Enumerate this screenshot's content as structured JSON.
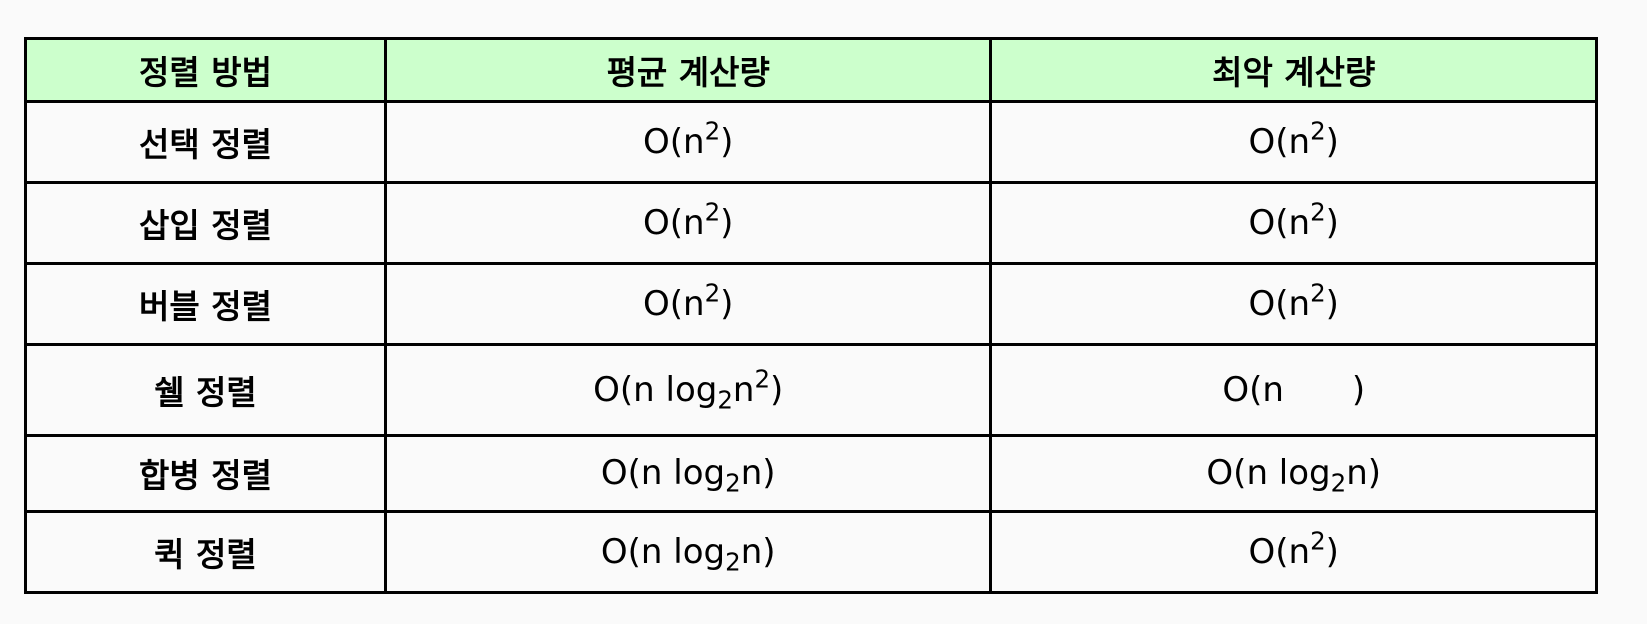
{
  "table": {
    "headers": [
      "정렬 방법",
      "평균 계산량",
      "최악 계산량"
    ],
    "rows": [
      {
        "method": "선택 정렬",
        "average": {
          "base": "O(n",
          "sup": "2",
          "close": ")"
        },
        "worst": {
          "base": "O(n",
          "sup": "2",
          "close": ")"
        }
      },
      {
        "method": "삽입 정렬",
        "average": {
          "base": "O(n",
          "sup": "2",
          "close": ")"
        },
        "worst": {
          "base": "O(n",
          "sup": "2",
          "close": ")"
        }
      },
      {
        "method": "버블 정렬",
        "average": {
          "base": "O(n",
          "sup": "2",
          "close": ")"
        },
        "worst": {
          "base": "O(n",
          "sup": "2",
          "close": ")"
        }
      },
      {
        "method": "쉘 정렬",
        "average": {
          "base": "O(n log",
          "sub": "2",
          "mid": "n",
          "sup": "2",
          "close": ")"
        },
        "worst": {
          "base": "O(n",
          "close": ")"
        }
      },
      {
        "method": "합병 정렬",
        "average": {
          "base": "O(n log",
          "sub": "2",
          "mid": "n",
          "close": ")"
        },
        "worst": {
          "base": "O(n log",
          "sub": "2",
          "mid": "n",
          "close": ")"
        }
      },
      {
        "method": "퀵 정렬",
        "average": {
          "base": "O(n log",
          "sub": "2",
          "mid": "n",
          "close": ")"
        },
        "worst": {
          "base": "O(n",
          "sup": "2",
          "close": ")"
        }
      }
    ]
  }
}
